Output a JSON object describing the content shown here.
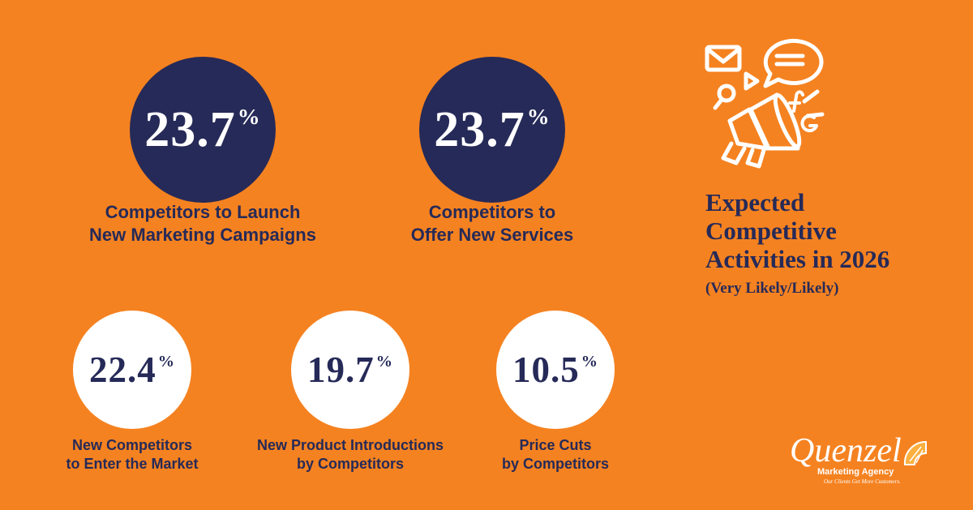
{
  "title": {
    "lines": [
      "Expected",
      "Competitive",
      "Activities in 2026"
    ],
    "subtitle": "(Very Likely/Likely)"
  },
  "chart_data": {
    "type": "table",
    "unit": "%",
    "stats": [
      {
        "value": 23.7,
        "display": "23.7",
        "label": [
          "Competitors to Launch",
          "New Marketing Campaigns"
        ],
        "style": "dark"
      },
      {
        "value": 23.7,
        "display": "23.7",
        "label": [
          "Competitors to",
          "Offer New Services"
        ],
        "style": "dark"
      },
      {
        "value": 22.4,
        "display": "22.4",
        "label": [
          "New Competitors",
          "to Enter the Market"
        ],
        "style": "light"
      },
      {
        "value": 19.7,
        "display": "19.7",
        "label": [
          "New Product Introductions",
          "by Competitors"
        ],
        "style": "light"
      },
      {
        "value": 10.5,
        "display": "10.5",
        "label": [
          "Price Cuts",
          "by Competitors"
        ],
        "style": "light"
      }
    ]
  },
  "colors": {
    "background": "#F58220",
    "navy": "#262A58",
    "white": "#FFFFFF"
  },
  "icons": [
    "megaphone-icon",
    "envelope-icon",
    "chat-bubble-icon",
    "magnifier-icon",
    "play-icon",
    "facebook-icon",
    "google-icon",
    "orange-slice-icon"
  ],
  "logo": {
    "brand": "Quenzel",
    "sub": "Marketing Agency",
    "tagline": "Our Clients Get More Customers."
  }
}
